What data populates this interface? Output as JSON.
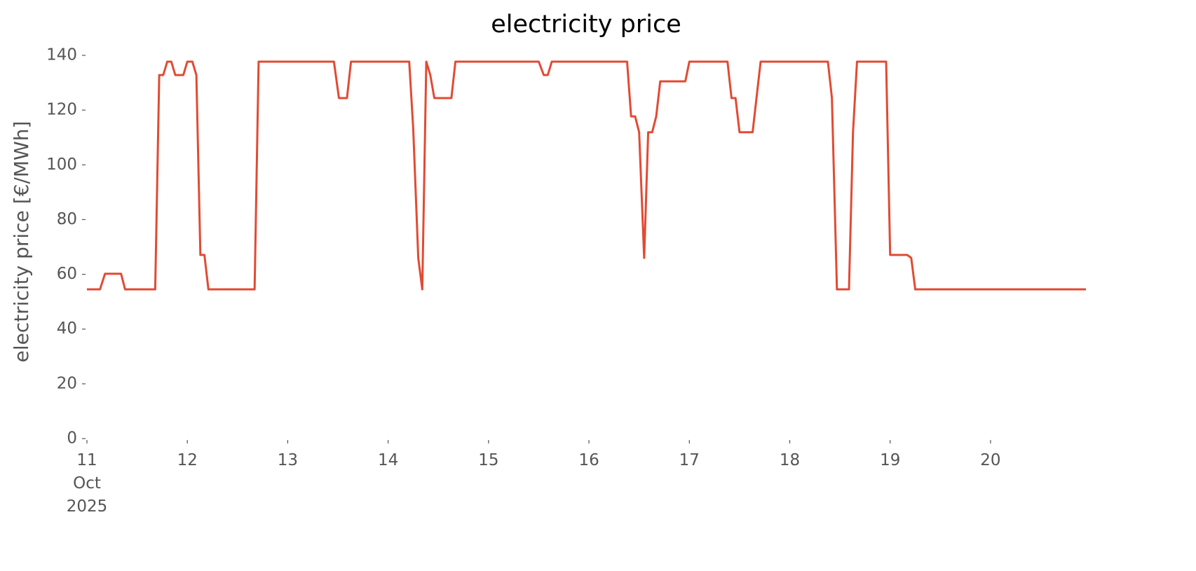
{
  "chart_data": {
    "type": "line",
    "title": "electricity price",
    "y_label": "electricity price [€/MWh]",
    "x": [
      11.0,
      11.13,
      11.18,
      11.34,
      11.38,
      11.68,
      11.72,
      11.76,
      11.8,
      11.84,
      11.88,
      11.96,
      12.0,
      12.05,
      12.09,
      12.13,
      12.17,
      12.21,
      12.67,
      12.71,
      13.46,
      13.51,
      13.59,
      13.63,
      14.21,
      14.25,
      14.3,
      14.34,
      14.38,
      14.42,
      14.46,
      14.63,
      14.67,
      15.5,
      15.55,
      15.59,
      15.63,
      16.38,
      16.42,
      16.46,
      16.5,
      16.55,
      16.59,
      16.63,
      16.67,
      16.71,
      16.96,
      17.0,
      17.38,
      17.42,
      17.46,
      17.5,
      17.63,
      17.71,
      18.38,
      18.42,
      18.47,
      18.59,
      18.63,
      18.67,
      18.96,
      19.0,
      19.17,
      19.21,
      19.25,
      20.95
    ],
    "series": [
      {
        "name": "electricity price",
        "color": "#e24a33",
        "values": [
          54.5,
          54.5,
          60.2,
          60.2,
          54.5,
          54.5,
          132.8,
          132.8,
          137.7,
          137.7,
          132.8,
          132.8,
          137.7,
          137.7,
          132.8,
          67.1,
          67.1,
          54.5,
          54.5,
          137.7,
          137.7,
          124.4,
          124.4,
          137.7,
          137.7,
          113.1,
          66.0,
          54.5,
          137.7,
          132.8,
          124.4,
          124.4,
          137.7,
          137.7,
          132.8,
          132.8,
          137.7,
          137.7,
          117.7,
          117.7,
          111.9,
          66.0,
          111.9,
          111.9,
          117.7,
          130.5,
          130.5,
          137.7,
          137.7,
          124.4,
          124.4,
          111.9,
          111.9,
          137.7,
          137.7,
          124.4,
          54.5,
          54.5,
          111.9,
          137.7,
          137.7,
          67.1,
          67.1,
          66.0,
          54.5,
          54.5
        ]
      }
    ],
    "xlim": [
      11,
      20.95
    ],
    "ylim": [
      0,
      140
    ],
    "xticks": [
      {
        "value": 11,
        "label": "11\nOct\n2025"
      },
      12,
      13,
      14,
      15,
      16,
      17,
      18,
      19,
      20
    ],
    "yticks": [
      0,
      20,
      40,
      60,
      80,
      100,
      120,
      140
    ],
    "grid": false
  }
}
